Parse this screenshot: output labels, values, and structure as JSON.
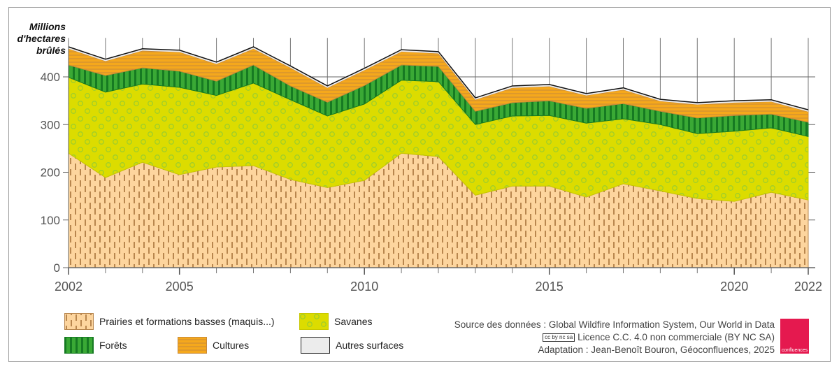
{
  "chart_data": {
    "type": "area",
    "stacked": true,
    "ylabel": "Millions d'hectares brûlés",
    "ylabel_lines": [
      "Millions",
      "d'hectares",
      "brûlés"
    ],
    "x": [
      2002,
      2003,
      2004,
      2005,
      2006,
      2007,
      2008,
      2009,
      2010,
      2011,
      2012,
      2013,
      2014,
      2015,
      2016,
      2017,
      2018,
      2019,
      2020,
      2021,
      2022
    ],
    "x_ticks": [
      "2002",
      "2005",
      "2010",
      "2015",
      "2020",
      "2022"
    ],
    "y_ticks": [
      "0",
      "100",
      "200",
      "300",
      "400"
    ],
    "ylim": [
      0,
      470
    ],
    "grid": true,
    "legend_position": "bottom",
    "series": [
      {
        "name": "Prairies et formations basses (maquis...)",
        "color": "#fdd59e",
        "pattern": "vertical-dashes",
        "values": [
          240,
          189,
          221,
          195,
          211,
          214,
          185,
          168,
          183,
          240,
          233,
          152,
          171,
          171,
          148,
          176,
          161,
          145,
          139,
          158,
          142
        ]
      },
      {
        "name": "Savanes",
        "color": "#dcdc00",
        "pattern": "circles",
        "values": [
          159,
          179,
          164,
          183,
          150,
          173,
          167,
          150,
          160,
          153,
          157,
          148,
          147,
          148,
          155,
          136,
          139,
          136,
          147,
          135,
          133
        ]
      },
      {
        "name": "Forêts",
        "color": "#36a333",
        "pattern": "vertical-stripes",
        "values": [
          26,
          35,
          34,
          34,
          30,
          38,
          29,
          29,
          39,
          32,
          32,
          28,
          28,
          31,
          31,
          32,
          28,
          33,
          33,
          29,
          30
        ]
      },
      {
        "name": "Cultures",
        "color": "#f5a81c",
        "pattern": "horizontal-stripes",
        "values": [
          34,
          30,
          36,
          40,
          36,
          34,
          38,
          30,
          32,
          28,
          27,
          24,
          31,
          30,
          27,
          29,
          21,
          28,
          27,
          26,
          22
        ]
      },
      {
        "name": "Autres surfaces",
        "color": "#ececec",
        "pattern": "none",
        "values": [
          4,
          4,
          4,
          4,
          4,
          4,
          4,
          4,
          4,
          4,
          4,
          4,
          4,
          4,
          4,
          4,
          4,
          4,
          4,
          4,
          4
        ]
      }
    ]
  },
  "source": {
    "line1": "Source des données : Global Wildfire Information System, Our World in Data",
    "cc_badge": "cc by nc sa",
    "line2": "Licence C.C. 4.0 non commerciale (BY NC SA)",
    "line3": "Adaptation : Jean-Benoît Bouron, Géoconfluences, 2025"
  },
  "logo": {
    "text": "Géo confluences",
    "color": "#e5194f"
  }
}
